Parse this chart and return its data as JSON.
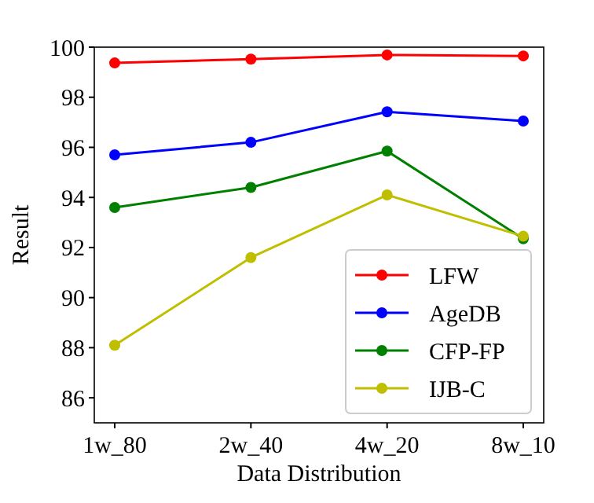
{
  "chart_data": {
    "type": "line",
    "xlabel": "Data Distribution",
    "ylabel": "Result",
    "categories": [
      "1w_80",
      "2w_40",
      "4w_20",
      "8w_10"
    ],
    "series": [
      {
        "name": "LFW",
        "color": "#ff0000",
        "values": [
          99.37,
          99.52,
          99.69,
          99.65
        ]
      },
      {
        "name": "AgeDB",
        "color": "#0000ff",
        "values": [
          95.7,
          96.2,
          97.42,
          97.05
        ]
      },
      {
        "name": "CFP-FP",
        "color": "#008000",
        "values": [
          93.6,
          94.4,
          95.85,
          92.35
        ]
      },
      {
        "name": "IJB-C",
        "color": "#bfbf00",
        "values": [
          88.1,
          91.6,
          94.1,
          92.45
        ]
      }
    ],
    "ylim": [
      85,
      100
    ],
    "yticks": [
      86,
      88,
      90,
      92,
      94,
      96,
      98,
      100
    ],
    "grid": false,
    "legend": "bottom right",
    "marker": "circle",
    "line_style": "solid"
  }
}
